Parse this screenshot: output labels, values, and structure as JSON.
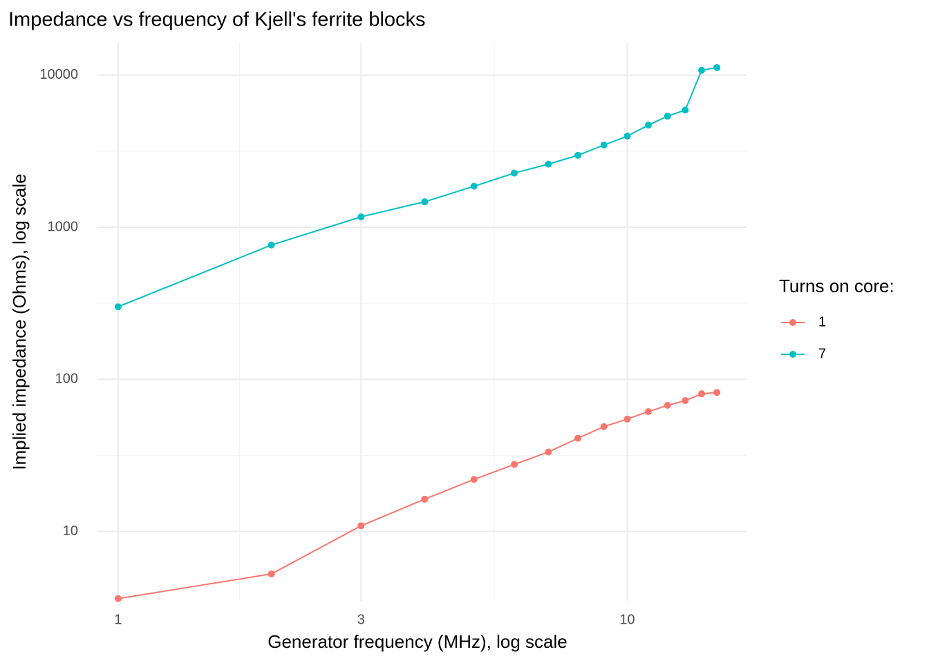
{
  "chart_data": {
    "type": "line",
    "title": "Impedance vs frequency of Kjell's ferrite blocks",
    "x_label": "Generator frequency (MHz), log scale",
    "y_label": "Implied impedance (Ohms), log scale",
    "legend_title": "Turns on core:",
    "legend_position": "right",
    "x_log": true,
    "y_log": true,
    "grid": true,
    "x": [
      1,
      2,
      3,
      4,
      5,
      6,
      7,
      8,
      9,
      10,
      11,
      12,
      13,
      14,
      15
    ],
    "series": [
      {
        "name": "1",
        "color": "#F8766D",
        "values": [
          3.62,
          5.26,
          10.9,
          16.3,
          22.0,
          27.6,
          33.3,
          41.0,
          48.9,
          54.8,
          61.4,
          67.5,
          72.5,
          80.4,
          82.0
        ]
      },
      {
        "name": "7",
        "color": "#00BFC4",
        "values": [
          300,
          764,
          1170,
          1470,
          1860,
          2270,
          2600,
          2970,
          3470,
          3970,
          4690,
          5370,
          5890,
          10760,
          11210
        ]
      }
    ],
    "xlim": [
      0.908,
      17.15
    ],
    "ylim": [
      3.5,
      16300
    ],
    "xticks": [
      1,
      3,
      10
    ],
    "yticks": [
      10,
      100,
      1000,
      10000
    ]
  }
}
